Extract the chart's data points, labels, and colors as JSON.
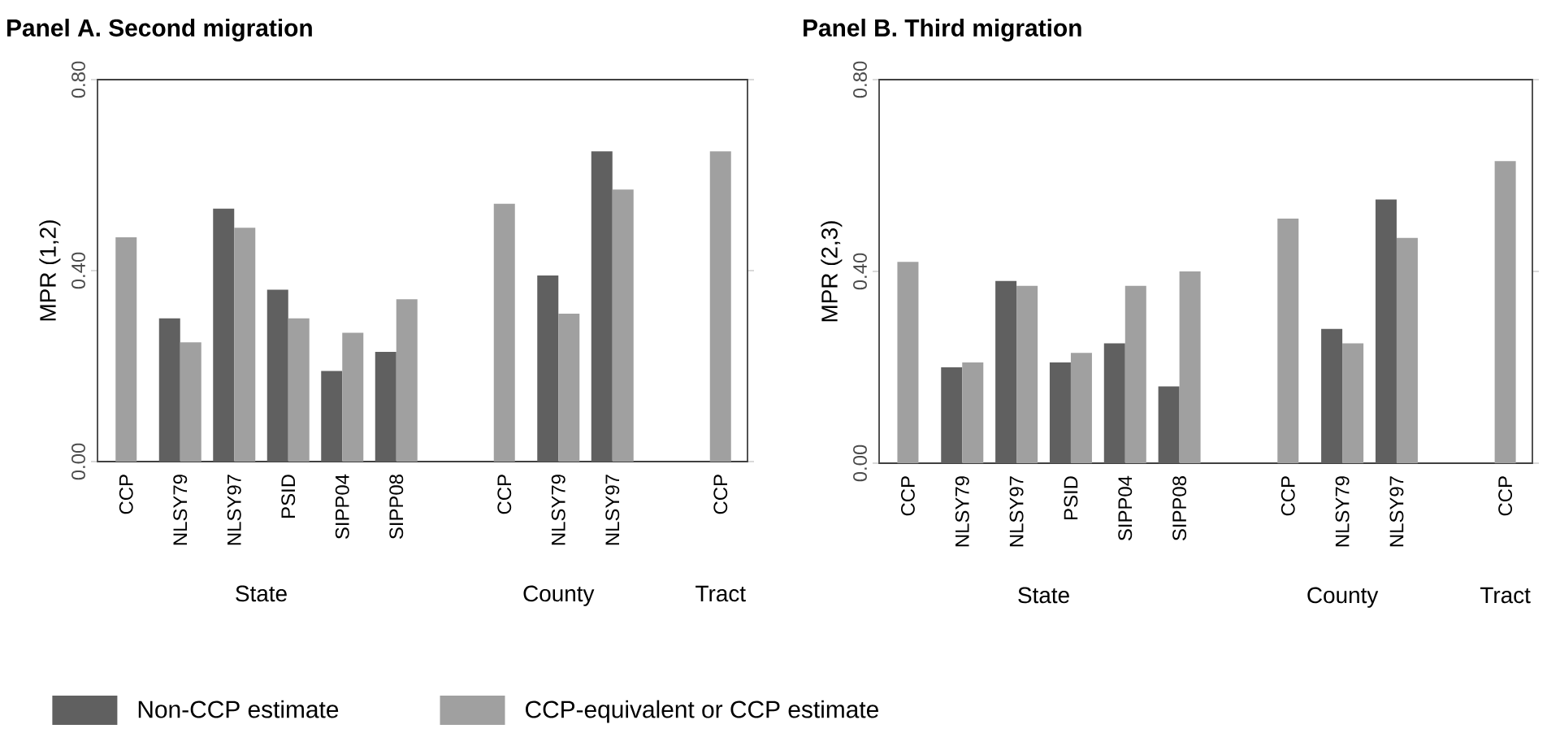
{
  "chart_data": [
    {
      "type": "bar",
      "title": "Panel A. Second migration",
      "ylabel": "MPR (1,2)",
      "categories": [
        "CCP",
        "NLSY79",
        "NLSY97",
        "PSID",
        "SIPP04",
        "SIPP08",
        null,
        "CCP",
        "NLSY79",
        "NLSY97",
        null,
        "CCP"
      ],
      "series": [
        {
          "name": "Non-CCP estimate",
          "color": "#606060",
          "values": [
            null,
            0.3,
            0.53,
            0.36,
            0.19,
            0.23,
            null,
            null,
            0.39,
            0.65,
            null,
            null
          ]
        },
        {
          "name": "CCP-equivalent or CCP estimate",
          "color": "#a0a0a0",
          "values": [
            0.47,
            0.25,
            0.49,
            0.3,
            0.27,
            0.34,
            null,
            0.54,
            0.31,
            0.57,
            null,
            0.65
          ]
        }
      ],
      "ylim": [
        0,
        0.8
      ],
      "yticks": [
        {
          "value": 0,
          "label": "0.00"
        },
        {
          "value": 0.4,
          "label": "0.40"
        },
        {
          "value": 0.8,
          "label": "0.80"
        }
      ],
      "legend": "bottom",
      "annotations": [
        "State",
        "County",
        "Tract"
      ]
    },
    {
      "type": "bar",
      "title": "Panel B. Third migration",
      "ylabel": "MPR (2,3)",
      "categories": [
        "CCP",
        "NLSY79",
        "NLSY97",
        "PSID",
        "SIPP04",
        "SIPP08",
        null,
        "CCP",
        "NLSY79",
        "NLSY97",
        null,
        "CCP"
      ],
      "series": [
        {
          "color": "#606060",
          "values": [
            null,
            0.2,
            0.38,
            0.21,
            0.25,
            0.16,
            null,
            null,
            0.28,
            0.55,
            null,
            null
          ]
        },
        {
          "color": "#a0a0a0",
          "values": [
            0.42,
            0.21,
            0.37,
            0.23,
            0.37,
            0.4,
            null,
            0.51,
            0.25,
            0.47,
            null,
            0.63
          ]
        }
      ],
      "ylim": [
        0,
        0.8
      ],
      "yticks": [
        {
          "value": 0,
          "label": "0.00"
        },
        {
          "value": 0.4,
          "label": "0.40"
        },
        {
          "value": 0.8,
          "label": "0.80"
        }
      ],
      "annotations": [
        "State",
        "County",
        "Tract"
      ]
    }
  ]
}
